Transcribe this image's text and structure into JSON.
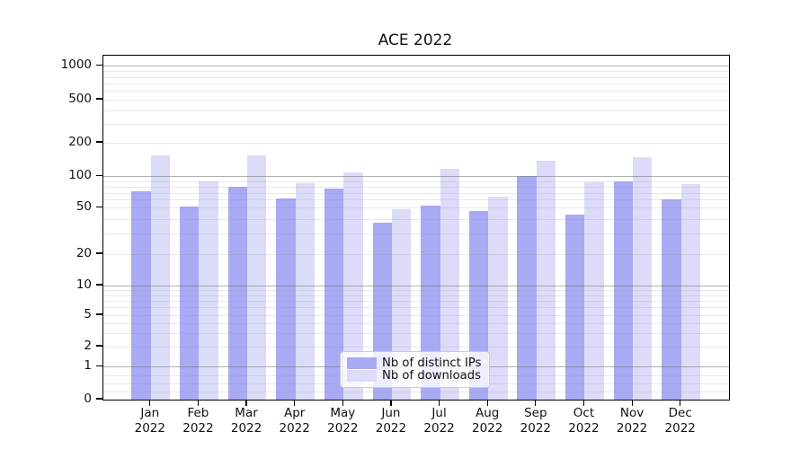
{
  "chart_data": {
    "type": "bar",
    "title": "ACE 2022",
    "categories": [
      "Jan 2022",
      "Feb 2022",
      "Mar 2022",
      "Apr 2022",
      "May 2022",
      "Jun 2022",
      "Jul 2022",
      "Aug 2022",
      "Sep 2022",
      "Oct 2022",
      "Nov 2022",
      "Dec 2022"
    ],
    "series": [
      {
        "name": "Nb of distinct IPs",
        "color": "#a9a9f4",
        "values": [
          72,
          52,
          80,
          61,
          76,
          37,
          53,
          47,
          100,
          44,
          90,
          60
        ]
      },
      {
        "name": "Nb of downloads",
        "color": "#dcdcf8",
        "values": [
          155,
          89,
          155,
          87,
          108,
          49,
          116,
          64,
          139,
          88,
          150,
          85
        ]
      }
    ],
    "yscale": "symlog",
    "yticks": [
      0,
      1,
      2,
      5,
      10,
      20,
      50,
      100,
      200,
      500,
      1000
    ],
    "ylim": [
      0,
      1300
    ],
    "xlabel": "",
    "ylabel": "",
    "grid": "on",
    "legend_position": "lower center"
  }
}
